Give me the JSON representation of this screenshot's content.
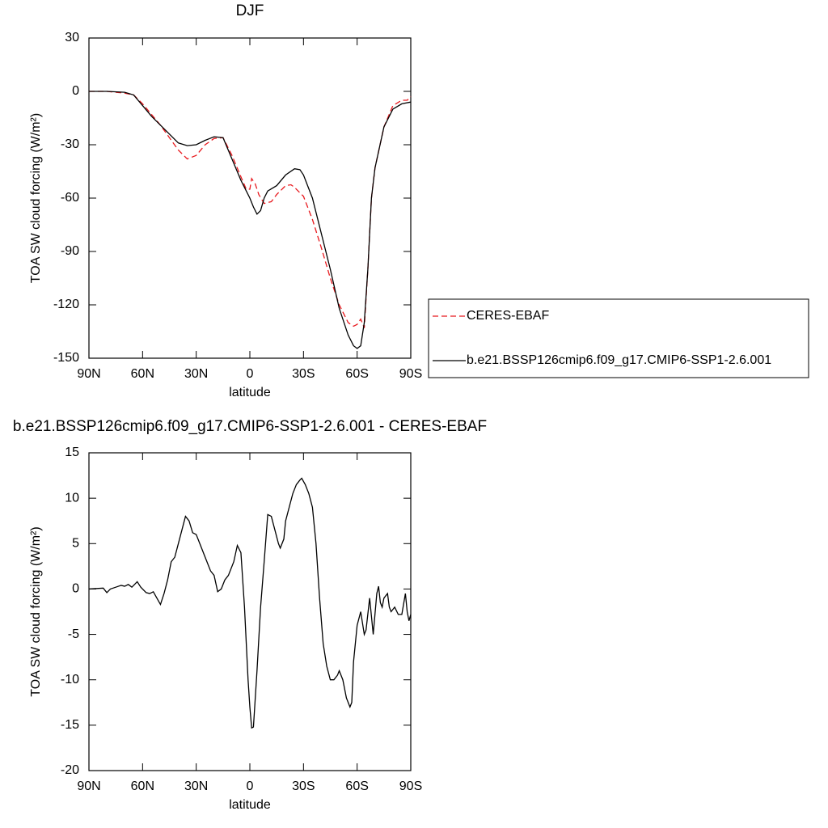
{
  "chart_data": [
    {
      "type": "line",
      "title": "DJF",
      "x_label": "latitude",
      "y_label": "TOA SW cloud forcing (W/m²)",
      "xlim": [
        90,
        -90
      ],
      "xticks": [
        {
          "value": 90,
          "label": "90N"
        },
        {
          "value": 60,
          "label": "60N"
        },
        {
          "value": 30,
          "label": "30N"
        },
        0,
        {
          "value": -30,
          "label": "30S"
        },
        {
          "value": -60,
          "label": "60S"
        },
        {
          "value": -90,
          "label": "90S"
        }
      ],
      "ylim": [
        -150,
        30
      ],
      "yticks": [
        -150,
        -120,
        -90,
        -60,
        -30,
        0,
        30
      ],
      "legend": "right",
      "series": [
        {
          "name": "CERES-EBAF",
          "color": "#e8191e",
          "line_style": "dashed",
          "x": [
            90,
            80,
            70,
            65,
            60,
            55,
            50,
            45,
            40,
            35,
            30,
            25,
            20,
            15,
            10,
            5,
            2,
            0,
            -1,
            -3,
            -5,
            -8,
            -12,
            -15,
            -20,
            -23,
            -25,
            -30,
            -35,
            -40,
            -45,
            -50,
            -55,
            -58,
            -60,
            -62,
            -64,
            -66,
            -68,
            -70,
            -75,
            -80,
            -85,
            -88,
            -90
          ],
          "values": [
            0,
            0,
            -1,
            -2,
            -7,
            -13,
            -19,
            -26,
            -33,
            -38,
            -36,
            -30,
            -26.5,
            -26,
            -36,
            -48,
            -55,
            -55,
            -49,
            -52,
            -58,
            -63,
            -62,
            -58,
            -53,
            -52.5,
            -54,
            -59,
            -72,
            -88,
            -105,
            -120,
            -130,
            -132,
            -131,
            -128,
            -133,
            -100,
            -60,
            -43,
            -20,
            -8,
            -5,
            -5,
            -3
          ]
        },
        {
          "name": "b.e21.BSSP126cmip6.f09_g17.CMIP6-SSP1-2.6.001",
          "color": "#000000",
          "line_style": "solid",
          "x": [
            90,
            80,
            70,
            65,
            60,
            55,
            50,
            45,
            40,
            35,
            30,
            25,
            20,
            15,
            10,
            5,
            2,
            0,
            -2,
            -4,
            -6,
            -8,
            -10,
            -15,
            -20,
            -25,
            -28,
            -30,
            -35,
            -40,
            -45,
            -50,
            -55,
            -58,
            -60,
            -62,
            -64,
            -66,
            -68,
            -70,
            -75,
            -80,
            -85,
            -90
          ],
          "values": [
            0,
            0,
            -0.5,
            -2,
            -8,
            -14,
            -19,
            -24,
            -29,
            -30.5,
            -30,
            -27.5,
            -25.5,
            -26,
            -38,
            -50,
            -56,
            -60,
            -65,
            -69,
            -67,
            -60,
            -56,
            -53,
            -47,
            -43.5,
            -44,
            -47,
            -60,
            -80,
            -100,
            -122,
            -137,
            -143,
            -144.5,
            -143,
            -130,
            -100,
            -60,
            -43,
            -20,
            -10,
            -7,
            -6
          ]
        }
      ]
    },
    {
      "type": "line",
      "title": "b.e21.BSSP126cmip6.f09_g17.CMIP6-SSP1-2.6.001 - CERES-EBAF",
      "x_label": "latitude",
      "y_label": "TOA SW cloud forcing (W/m²)",
      "xlim": [
        90,
        -90
      ],
      "xticks": [
        {
          "value": 90,
          "label": "90N"
        },
        {
          "value": 60,
          "label": "60N"
        },
        {
          "value": 30,
          "label": "30N"
        },
        0,
        {
          "value": -30,
          "label": "30S"
        },
        {
          "value": -60,
          "label": "60S"
        },
        {
          "value": -90,
          "label": "90S"
        }
      ],
      "ylim": [
        -20,
        15
      ],
      "yticks": [
        -20,
        -15,
        -10,
        -5,
        0,
        5,
        10,
        15
      ],
      "series": [
        {
          "color": "#000000",
          "line_style": "solid",
          "x": [
            90,
            82,
            80,
            78,
            75,
            72,
            70,
            68,
            66,
            63,
            61,
            58,
            56,
            54,
            52,
            50,
            48,
            46,
            44,
            42,
            40,
            38,
            36,
            34,
            32,
            30,
            28,
            25,
            22,
            20,
            18,
            16,
            14,
            12,
            9,
            7,
            5,
            3,
            1,
            0,
            -1,
            -2,
            -4,
            -6,
            -8,
            -10,
            -12,
            -14,
            -16,
            -17,
            -19,
            -20,
            -22,
            -24,
            -26,
            -28,
            -29,
            -31,
            -33,
            -35,
            -37,
            -39,
            -41,
            -43,
            -45,
            -47,
            -49,
            -50,
            -52,
            -54,
            -56,
            -57,
            -58,
            -60,
            -62,
            -64,
            -65,
            -67,
            -68,
            -69,
            -71,
            -72,
            -73,
            -74,
            -75,
            -77,
            -78,
            -79,
            -81,
            -83,
            -85,
            -87,
            -88,
            -89,
            -90
          ],
          "values": [
            0,
            0.1,
            -0.4,
            0,
            0.2,
            0.4,
            0.3,
            0.5,
            0.2,
            0.8,
            0.2,
            -0.4,
            -0.5,
            -0.3,
            -1,
            -1.7,
            -0.5,
            1,
            3,
            3.5,
            5,
            6.5,
            8,
            7.5,
            6.2,
            6,
            5,
            3.5,
            2,
            1.5,
            -0.3,
            0,
            1,
            1.5,
            3,
            4.8,
            4,
            -2,
            -10,
            -13,
            -15.3,
            -15.2,
            -9,
            -2,
            3,
            8.2,
            8,
            6.5,
            5,
            4.5,
            5.5,
            7.5,
            9,
            10.5,
            11.5,
            12,
            12.2,
            11.5,
            10.5,
            9,
            5,
            -1,
            -6,
            -8.5,
            -10,
            -10,
            -9.5,
            -9,
            -10,
            -12,
            -13,
            -12.5,
            -8,
            -4,
            -2.5,
            -5,
            -4.5,
            -1,
            -3,
            -5,
            -0.5,
            0.3,
            -1.5,
            -2,
            -1,
            -0.5,
            -2,
            -2.5,
            -2,
            -2.8,
            -2.8,
            -0.5,
            -2.5,
            -3.5,
            -2.8
          ]
        }
      ]
    }
  ]
}
